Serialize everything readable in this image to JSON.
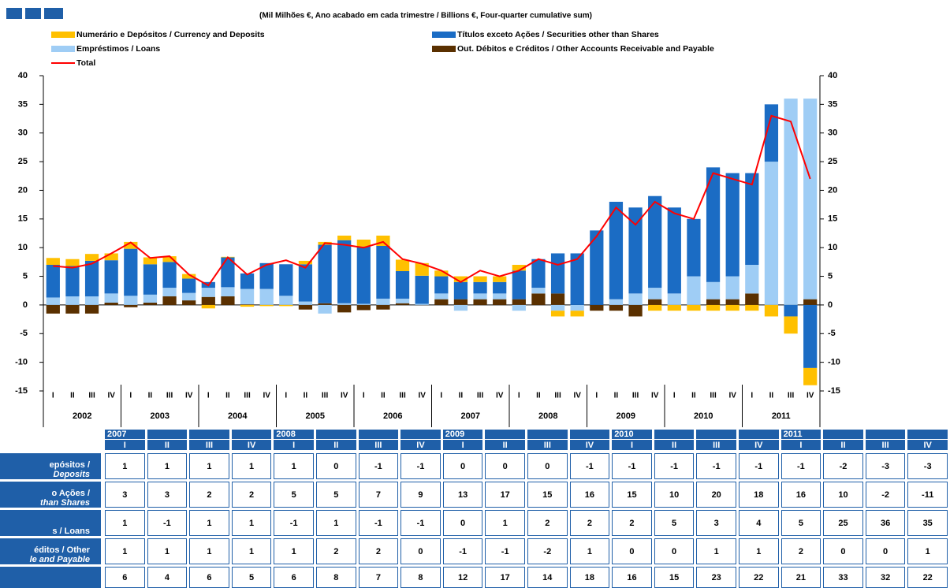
{
  "chart_data": {
    "type": "bar",
    "stacked": true,
    "subtitle": "(Mil Milhões €, Ano acabado em cada trimestre  / Billions €, Four-quarter cumulative sum)",
    "categories": [
      "I",
      "II",
      "III",
      "IV",
      "I",
      "II",
      "III",
      "IV",
      "I",
      "II",
      "III",
      "IV",
      "I",
      "II",
      "III",
      "IV",
      "I",
      "II",
      "III",
      "IV",
      "I",
      "II",
      "III",
      "IV",
      "I",
      "II",
      "III",
      "IV",
      "I",
      "II",
      "III",
      "IV",
      "I",
      "II",
      "III",
      "IV",
      "I",
      "II",
      "III",
      "IV"
    ],
    "years": [
      "2002",
      "2003",
      "2004",
      "2005",
      "2006",
      "2007",
      "2008",
      "2009",
      "2010",
      "2011"
    ],
    "series": [
      {
        "name": "Numerário e Depósitos / Currency and Deposits",
        "color": "#ffc000",
        "values": [
          1.2,
          1.2,
          1.2,
          1.2,
          1.2,
          1.2,
          1,
          0.8,
          -0.6,
          0.1,
          -0.3,
          -0.2,
          -0.2,
          0.6,
          0.5,
          0.8,
          1.2,
          1.8,
          2,
          2.2,
          1,
          1,
          1,
          1,
          1,
          0,
          -1,
          -1,
          0,
          0,
          0,
          -1,
          -1,
          -1,
          -1,
          -1,
          -1,
          -2,
          -3,
          -3
        ]
      },
      {
        "name": "Títulos exceto Ações / Securities other than Shares",
        "color": "#1b6cc4",
        "values": [
          5.7,
          5.3,
          6.2,
          5.8,
          8.2,
          5.3,
          4.5,
          2.5,
          1,
          5.2,
          2.7,
          4.5,
          5.5,
          6.5,
          10.2,
          11,
          10,
          9.2,
          4.8,
          4.9,
          3,
          3,
          2,
          2,
          5,
          5,
          7,
          9,
          13,
          17,
          15,
          16,
          15,
          10,
          20,
          18,
          16,
          10,
          -2,
          -11
        ]
      },
      {
        "name": "Empréstimos / Loans",
        "color": "#9fcdf5",
        "values": [
          1.3,
          1.5,
          1.5,
          1.6,
          1.6,
          1.4,
          1.5,
          1.3,
          1.6,
          1.6,
          2.7,
          2.8,
          1.6,
          0.6,
          -1.5,
          0.3,
          0.2,
          1.1,
          0.8,
          0.2,
          1,
          -1,
          1,
          1,
          -1,
          1,
          -1,
          -1,
          0,
          1,
          2,
          2,
          2,
          5,
          3,
          4,
          5,
          25,
          36,
          35
        ]
      },
      {
        "name": "Out. Débitos e Créditos / Other Accounts Receivable and Payable",
        "color": "#5a3000",
        "values": [
          -1.5,
          -1.5,
          -1.5,
          0.4,
          -0.4,
          0.4,
          1.5,
          0.8,
          1.4,
          1.5,
          0.1,
          0,
          0,
          -0.8,
          0.3,
          -1.3,
          -0.9,
          -0.8,
          0.3,
          0,
          1,
          1,
          1,
          1,
          1,
          2,
          2,
          0,
          -1,
          -1,
          -2,
          1,
          0,
          0,
          1,
          1,
          2,
          0,
          0,
          1
        ]
      },
      {
        "name": "Total",
        "type": "line",
        "color": "#ff0000",
        "values": [
          6.8,
          6.5,
          7.2,
          9,
          10.9,
          8.2,
          8.5,
          5.3,
          3.4,
          8.3,
          5.3,
          7,
          7.8,
          6.5,
          10.8,
          10.5,
          10,
          11,
          8,
          7.2,
          6,
          4,
          6,
          5,
          6,
          8,
          7,
          8,
          12,
          17,
          14,
          18,
          16,
          15,
          23,
          22,
          21,
          33,
          32,
          22
        ]
      }
    ],
    "ylim": [
      -15,
      40
    ],
    "yticks": [
      -15,
      -10,
      -5,
      0,
      5,
      10,
      15,
      20,
      25,
      30,
      35,
      40
    ],
    "right_axis": true
  },
  "table": {
    "columns": [
      {
        "year": "2007",
        "quarter": "I"
      },
      {
        "quarter": "II"
      },
      {
        "quarter": "III"
      },
      {
        "quarter": "IV"
      },
      {
        "year": "2008",
        "quarter": "I"
      },
      {
        "quarter": "II"
      },
      {
        "quarter": "III"
      },
      {
        "quarter": "IV"
      },
      {
        "year": "2009",
        "quarter": "I"
      },
      {
        "quarter": "II"
      },
      {
        "quarter": "III"
      },
      {
        "quarter": "IV"
      },
      {
        "year": "2010",
        "quarter": "I"
      },
      {
        "quarter": "II"
      },
      {
        "quarter": "III"
      },
      {
        "quarter": "IV"
      },
      {
        "year": "2011",
        "quarter": "I"
      },
      {
        "quarter": "II"
      },
      {
        "quarter": "III"
      },
      {
        "quarter": "IV"
      }
    ],
    "rows": [
      {
        "label": [
          "epósitos /",
          "Deposits"
        ],
        "values": [
          1,
          1,
          1,
          1,
          1,
          0,
          -1,
          -1,
          0,
          0,
          0,
          -1,
          -1,
          -1,
          -1,
          -1,
          -1,
          -2,
          -3,
          -3
        ]
      },
      {
        "label": [
          "o Ações /",
          "than Shares"
        ],
        "values": [
          3,
          3,
          2,
          2,
          5,
          5,
          7,
          9,
          13,
          17,
          15,
          16,
          15,
          10,
          20,
          18,
          16,
          10,
          -2,
          -11
        ]
      },
      {
        "label": [
          "s / Loans"
        ],
        "values": [
          1,
          -1,
          1,
          1,
          -1,
          1,
          -1,
          -1,
          0,
          1,
          2,
          2,
          2,
          5,
          3,
          4,
          5,
          25,
          36,
          35
        ]
      },
      {
        "label": [
          "éditos / Other",
          "le and Payable"
        ],
        "values": [
          1,
          1,
          1,
          1,
          1,
          2,
          2,
          0,
          -1,
          -1,
          -2,
          1,
          0,
          0,
          1,
          1,
          2,
          0,
          0,
          1
        ]
      },
      {
        "values": [
          6,
          4,
          6,
          5,
          6,
          8,
          7,
          8,
          12,
          17,
          14,
          18,
          16,
          15,
          23,
          22,
          21,
          33,
          32,
          22
        ]
      }
    ]
  }
}
